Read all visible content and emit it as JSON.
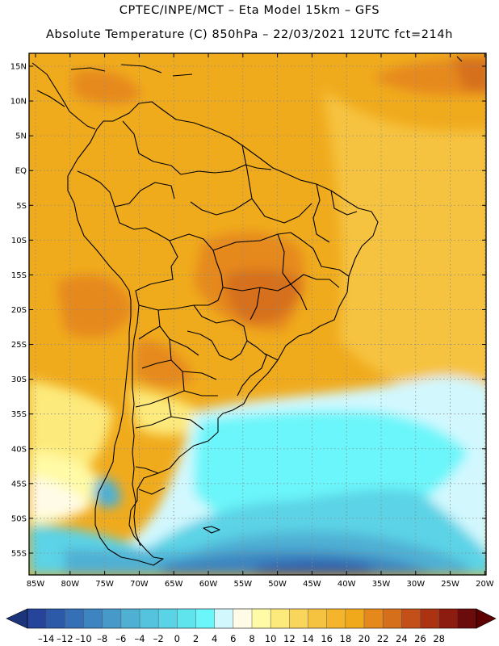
{
  "header": {
    "line1": "CPTEC/INPE/MCT –  Eta Model 15km – GFS",
    "line2": "Absolute Temperature (C) 850hPa – 22/03/2021 12UTC fct=214h"
  },
  "axes": {
    "lat_labels": [
      "15N",
      "10N",
      "5N",
      "EQ",
      "5S",
      "10S",
      "15S",
      "20S",
      "25S",
      "30S",
      "35S",
      "40S",
      "45S",
      "50S",
      "55S"
    ],
    "lon_labels": [
      "85W",
      "80W",
      "75W",
      "70W",
      "65W",
      "60W",
      "55W",
      "50W",
      "45W",
      "40W",
      "35W",
      "30W",
      "25W",
      "20W"
    ]
  },
  "colorbar": {
    "labels": [
      "-14",
      "-12",
      "-10",
      "-8",
      "-6",
      "-4",
      "-2",
      "0",
      "2",
      "4",
      "6",
      "8",
      "10",
      "12",
      "14",
      "16",
      "18",
      "20",
      "22",
      "24",
      "26",
      "28"
    ],
    "colors": [
      "#26449a",
      "#2d5aa8",
      "#356fb6",
      "#3d84c0",
      "#4699c8",
      "#4fb0d4",
      "#55c3de",
      "#5bd3e6",
      "#5fe4ee",
      "#6bf6fa",
      "#d2f8fe",
      "#fffbe6",
      "#fffaa5",
      "#fdea7c",
      "#fad55c",
      "#f6c341",
      "#f4b42b",
      "#f0a91b",
      "#e6891c",
      "#d66f1c",
      "#c45019",
      "#ab3312",
      "#8c1c10",
      "#6b0c0c"
    ],
    "under_color": "#1c357a",
    "over_color": "#5f0000"
  },
  "map_colors": {
    "tropics": "#f0ab1d",
    "hot": "#e6891c",
    "hottest": "#d66f1c",
    "warm_ocean": "#f6c341",
    "mild": "#fdea7c",
    "cool": "#fffaa5",
    "cream": "#fffbe6",
    "chill": "#d2f8fe",
    "cyan": "#6bf6fa",
    "cold1": "#5bd3e6",
    "cold2": "#4fb0d4",
    "cold3": "#3d84c0",
    "cold4": "#2d5aa8",
    "border": "#000000",
    "grid": "#8a8a8a"
  }
}
